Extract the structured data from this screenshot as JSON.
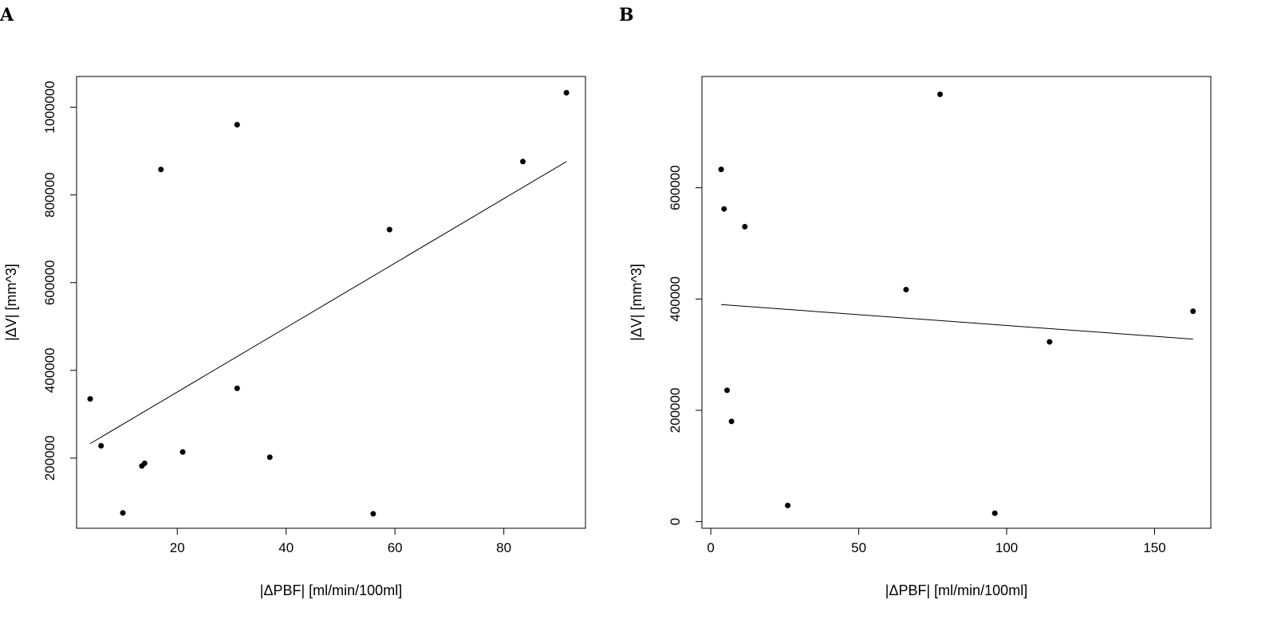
{
  "chart_data": [
    {
      "panel": "A",
      "type": "scatter",
      "xlabel": "|ΔPBF| [ml/min/100ml]",
      "ylabel": "|ΔV| [mm^3]",
      "xlim": [
        1.5,
        95
      ],
      "ylim": [
        40000,
        1070000
      ],
      "xticks": [
        20,
        40,
        60,
        80
      ],
      "yticks": [
        200000,
        400000,
        600000,
        800000,
        1000000
      ],
      "grid": false,
      "points": [
        {
          "x": 4.0,
          "y": 335000
        },
        {
          "x": 6.0,
          "y": 228000
        },
        {
          "x": 10.0,
          "y": 75000
        },
        {
          "x": 13.5,
          "y": 182000
        },
        {
          "x": 14.0,
          "y": 188000
        },
        {
          "x": 17.0,
          "y": 858000
        },
        {
          "x": 21.0,
          "y": 214000
        },
        {
          "x": 31.0,
          "y": 960000
        },
        {
          "x": 31.0,
          "y": 359000
        },
        {
          "x": 37.0,
          "y": 202000
        },
        {
          "x": 56.0,
          "y": 73000
        },
        {
          "x": 59.0,
          "y": 721000
        },
        {
          "x": 83.5,
          "y": 876000
        },
        {
          "x": 91.5,
          "y": 1033000
        }
      ],
      "fit_line": {
        "x1": 4.0,
        "y1": 233000,
        "x2": 91.5,
        "y2": 876000
      }
    },
    {
      "panel": "B",
      "type": "scatter",
      "xlabel": "|ΔPBF| [ml/min/100ml]",
      "ylabel": "|ΔV| [mm^3]",
      "xlim": [
        -3,
        169
      ],
      "ylim": [
        -12000,
        800000
      ],
      "xticks": [
        0,
        50,
        100,
        150
      ],
      "yticks": [
        0,
        200000,
        400000,
        600000
      ],
      "grid": false,
      "points": [
        {
          "x": 3.5,
          "y": 633000
        },
        {
          "x": 4.5,
          "y": 562000
        },
        {
          "x": 5.5,
          "y": 236000
        },
        {
          "x": 7.0,
          "y": 180000
        },
        {
          "x": 11.5,
          "y": 530000
        },
        {
          "x": 26.0,
          "y": 29000
        },
        {
          "x": 66.0,
          "y": 417000
        },
        {
          "x": 77.5,
          "y": 768000
        },
        {
          "x": 96.0,
          "y": 15000
        },
        {
          "x": 114.5,
          "y": 323000
        },
        {
          "x": 163.0,
          "y": 378000
        }
      ],
      "fit_line": {
        "x1": 3.5,
        "y1": 390000,
        "x2": 163.0,
        "y2": 328000
      }
    }
  ],
  "panels": [
    "A",
    "B"
  ]
}
